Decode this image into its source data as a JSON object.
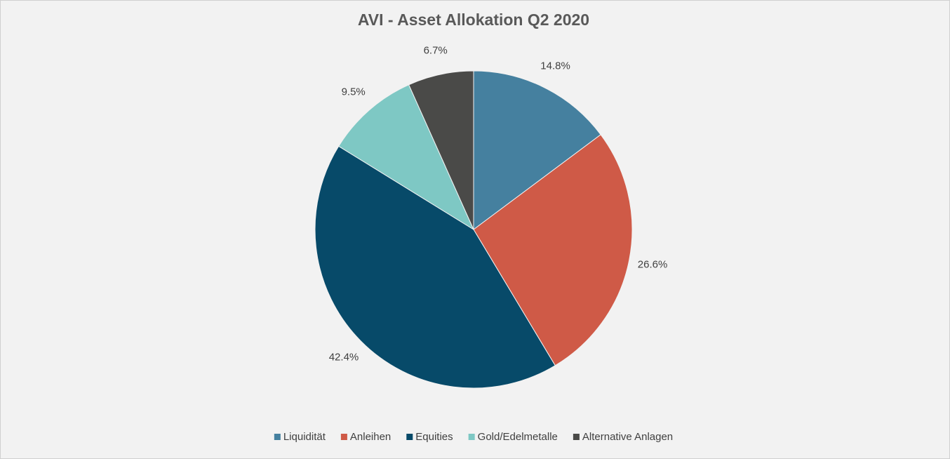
{
  "chart_data": {
    "type": "pie",
    "title": "AVI - Asset Allokation Q2 2020",
    "categories": [
      "Liquidität",
      "Anleihen",
      "Equities",
      "Gold/Edelmetalle",
      "Alternative Anlagen"
    ],
    "values": [
      14.8,
      26.6,
      42.4,
      9.5,
      6.7
    ],
    "value_labels": [
      "14.8%",
      "26.6%",
      "42.4%",
      "9.5%",
      "6.7%"
    ],
    "colors": [
      "#45809f",
      "#cf5a47",
      "#074a69",
      "#7ec8c4",
      "#4a4a48"
    ],
    "legend": "bottom"
  }
}
